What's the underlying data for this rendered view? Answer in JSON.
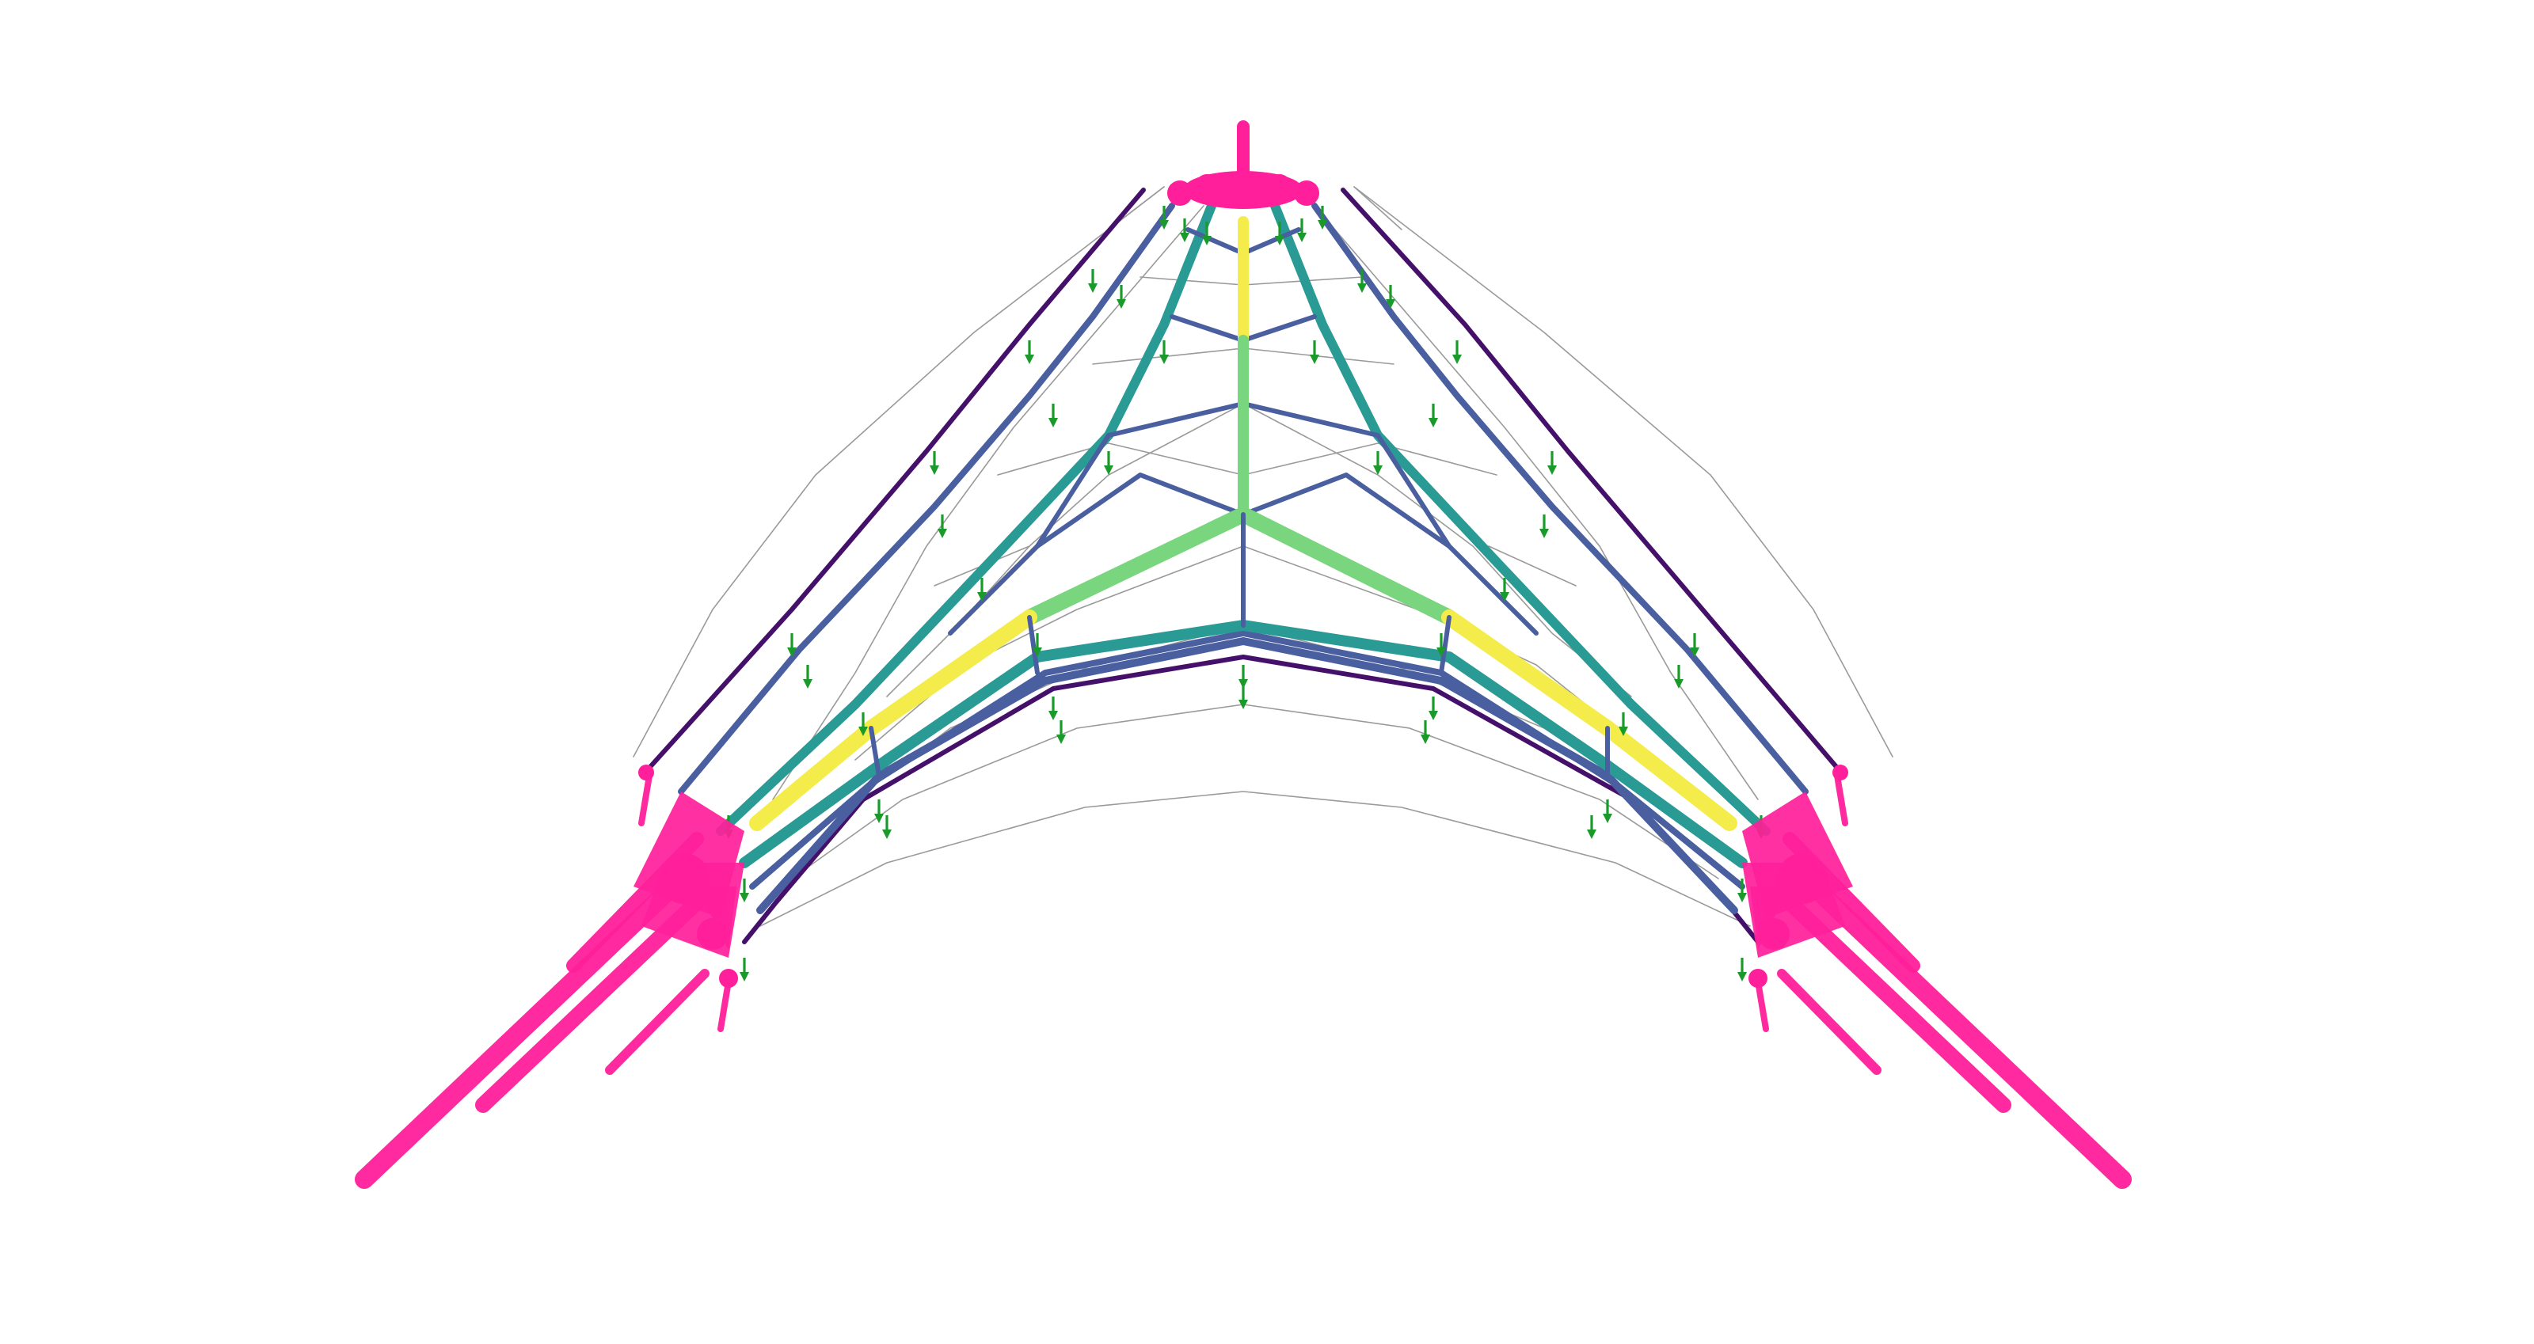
{
  "diagram": {
    "type": "funicular vault thrust-network force diagram",
    "palette": {
      "background": "#ffffff",
      "reaction": "#ff1f9a",
      "load": "#1a9a2a",
      "form_grid": "#9a9a9a",
      "force_low": "#44106a",
      "force_mid_low": "#4a5fa0",
      "force_mid": "#2a9a95",
      "force_mid_high": "#7ad67e",
      "force_high": "#f4ec4a"
    },
    "legend": null
  }
}
